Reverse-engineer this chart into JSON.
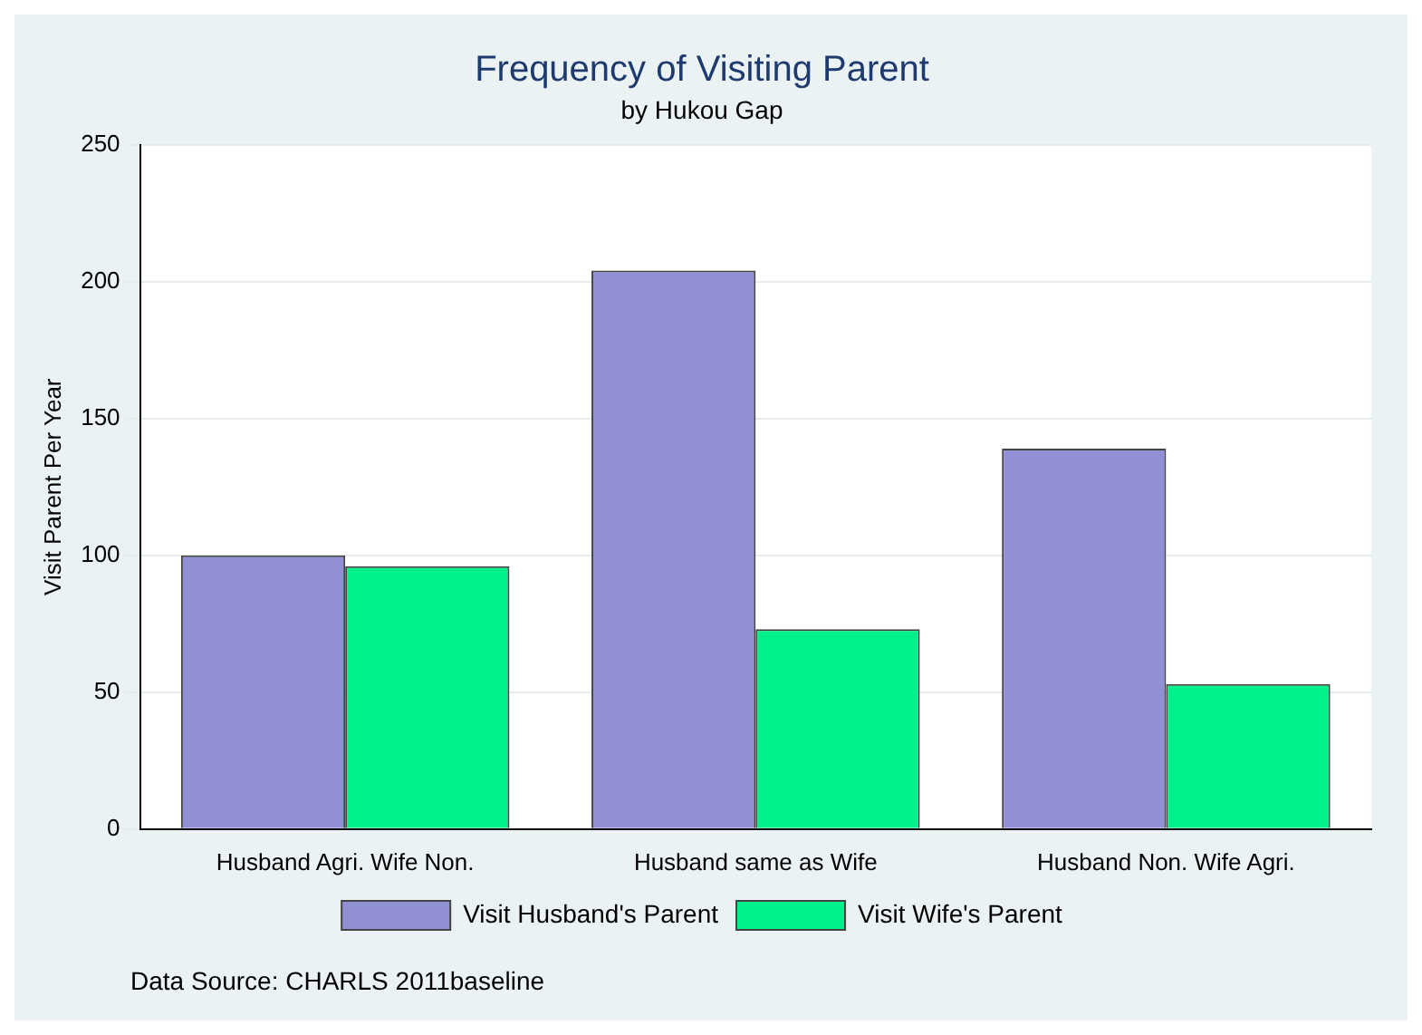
{
  "chart_data": {
    "type": "bar",
    "title": "Frequency of Visiting Parent",
    "subtitle": "by Hukou Gap",
    "ylabel": "Visit Parent Per Year",
    "categories": [
      "Husband Agri. Wife Non.",
      "Husband same as Wife",
      "Husband Non. Wife Agri."
    ],
    "series": [
      {
        "name": "Visit Husband's Parent",
        "color": "#9190d6",
        "values": [
          100,
          204,
          139
        ]
      },
      {
        "name": "Visit Wife's Parent",
        "color": "#00f08c",
        "values": [
          96,
          73,
          53
        ]
      }
    ],
    "ylim": [
      0,
      250
    ],
    "yticks": [
      0,
      50,
      100,
      150,
      200,
      250
    ],
    "grid": "y",
    "legend": "bottom",
    "annotations": [
      "Data Source: CHARLS 2011baseline"
    ]
  }
}
